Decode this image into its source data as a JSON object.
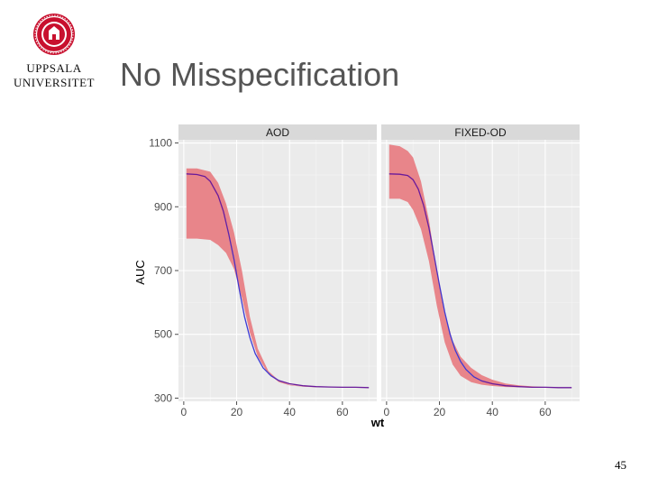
{
  "logo": {
    "line1": "UPPSALA",
    "line2": "UNIVERSITET",
    "seal_icon": "university-seal-icon",
    "seal_color": "#c8102e"
  },
  "slide": {
    "title": "No Misspecification",
    "number": "45"
  },
  "chart_data": {
    "type": "area",
    "xlabel": "wt",
    "ylabel": "AUC",
    "xlim": [
      -2,
      73
    ],
    "ylim": [
      290,
      1110
    ],
    "x_ticks": [
      "0",
      "20",
      "40",
      "60"
    ],
    "y_ticks": [
      "300",
      "500",
      "700",
      "900",
      "1100"
    ],
    "grid": true,
    "panels": [
      {
        "name": "AOD",
        "ribbon": {
          "x": [
            1,
            5,
            10,
            13,
            16,
            19,
            22,
            25,
            28,
            32,
            36,
            40,
            45,
            50,
            55,
            60,
            65,
            70
          ],
          "low": [
            800,
            800,
            796,
            780,
            755,
            705,
            615,
            505,
            430,
            375,
            350,
            340,
            336,
            334,
            334,
            333,
            333,
            333
          ],
          "high": [
            1020,
            1020,
            1010,
            975,
            910,
            820,
            700,
            555,
            455,
            385,
            355,
            342,
            337,
            335,
            334,
            334,
            333,
            333
          ]
        },
        "line": {
          "x": [
            1,
            5,
            8,
            10,
            13,
            15,
            17,
            19,
            21,
            23,
            25,
            27,
            30,
            33,
            36,
            40,
            45,
            50,
            55,
            60,
            65,
            70
          ],
          "y": [
            1003,
            1001,
            995,
            980,
            935,
            885,
            815,
            735,
            640,
            555,
            490,
            440,
            395,
            370,
            355,
            345,
            339,
            336,
            335,
            334,
            334,
            333
          ]
        }
      },
      {
        "name": "FIXED-OD",
        "ribbon": {
          "x": [
            1,
            5,
            8,
            10,
            13,
            16,
            19,
            22,
            25,
            28,
            32,
            36,
            40,
            45,
            50,
            55,
            60,
            65,
            70
          ],
          "low": [
            925,
            925,
            915,
            890,
            830,
            730,
            590,
            475,
            405,
            370,
            350,
            342,
            338,
            335,
            334,
            333,
            333,
            333,
            333
          ],
          "high": [
            1095,
            1090,
            1075,
            1055,
            980,
            860,
            700,
            570,
            480,
            430,
            395,
            372,
            358,
            346,
            340,
            337,
            335,
            334,
            333
          ]
        },
        "line": {
          "x": [
            1,
            5,
            8,
            10,
            12,
            14,
            16,
            18,
            20,
            22,
            24,
            26,
            28,
            30,
            33,
            36,
            40,
            45,
            50,
            55,
            60,
            65,
            70
          ],
          "y": [
            1003,
            1002,
            998,
            985,
            955,
            905,
            835,
            745,
            655,
            570,
            500,
            450,
            415,
            390,
            367,
            354,
            345,
            339,
            336,
            334,
            334,
            333,
            333
          ]
        }
      }
    ],
    "colors": {
      "ribbon": "#e8858a",
      "line_low_x": "#3b3bd6",
      "line_high_x": "#6a1a9a",
      "panel_bg": "#ebebeb",
      "strip_bg": "#d9d9d9",
      "grid": "#ffffff"
    }
  }
}
